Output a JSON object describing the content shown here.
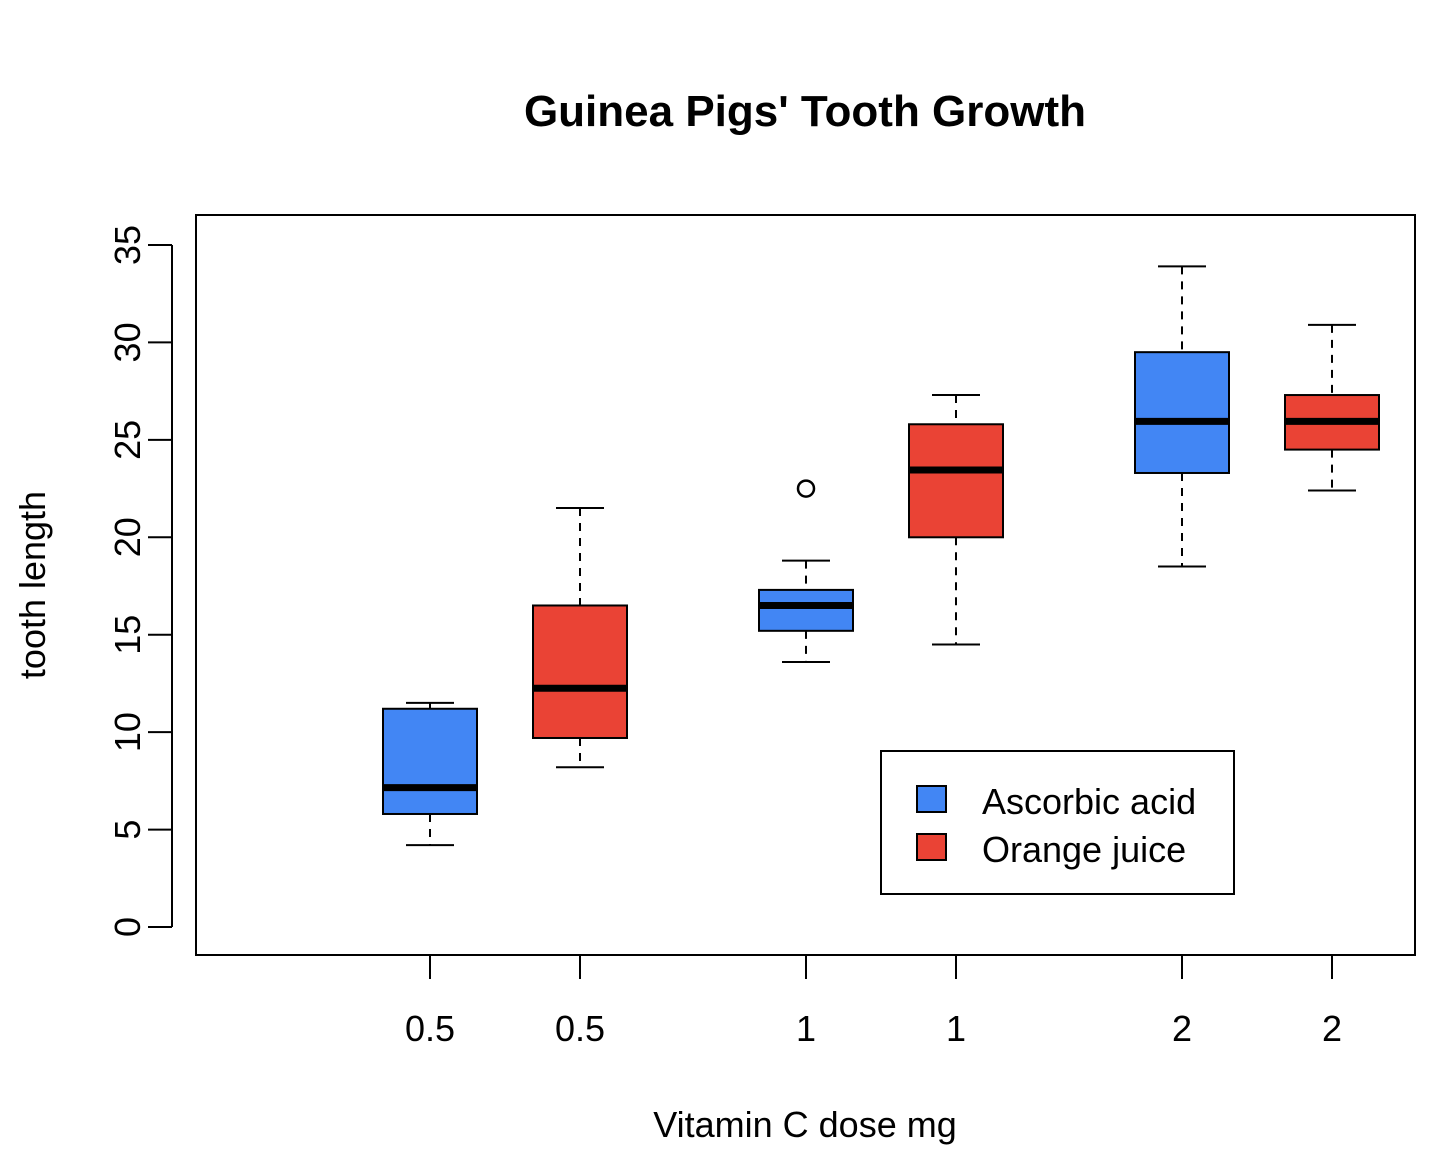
{
  "chart_data": {
    "type": "box",
    "title": "Guinea Pigs' Tooth Growth",
    "xlabel": "Vitamin C dose mg",
    "ylabel": "tooth length",
    "ylim": [
      0,
      35
    ],
    "yticks": [
      0,
      5,
      10,
      15,
      20,
      25,
      30,
      35
    ],
    "categories": [
      "0.5",
      "0.5",
      "1",
      "1",
      "2",
      "2"
    ],
    "boxes": [
      {
        "category": "0.5",
        "group": "Ascorbic acid",
        "min": 4.2,
        "q1": 5.8,
        "median": 7.15,
        "q3": 11.2,
        "max": 11.5,
        "outliers": []
      },
      {
        "category": "0.5",
        "group": "Orange juice",
        "min": 8.2,
        "q1": 9.7,
        "median": 12.25,
        "q3": 16.5,
        "max": 21.5,
        "outliers": []
      },
      {
        "category": "1",
        "group": "Ascorbic acid",
        "min": 13.6,
        "q1": 15.2,
        "median": 16.5,
        "q3": 17.3,
        "max": 18.8,
        "outliers": [
          22.5
        ]
      },
      {
        "category": "1",
        "group": "Orange juice",
        "min": 14.5,
        "q1": 20.0,
        "median": 23.45,
        "q3": 25.8,
        "max": 27.3,
        "outliers": []
      },
      {
        "category": "2",
        "group": "Ascorbic acid",
        "min": 18.5,
        "q1": 23.3,
        "median": 25.95,
        "q3": 29.5,
        "max": 33.9,
        "outliers": []
      },
      {
        "category": "2",
        "group": "Orange juice",
        "min": 22.4,
        "q1": 24.5,
        "median": 25.95,
        "q3": 27.3,
        "max": 30.9,
        "outliers": []
      }
    ],
    "legend": {
      "position": "bottom-right",
      "items": [
        {
          "label": "Ascorbic acid",
          "color": "#4286f4"
        },
        {
          "label": "Orange juice",
          "color": "#ea4335"
        }
      ]
    },
    "grid": false
  }
}
